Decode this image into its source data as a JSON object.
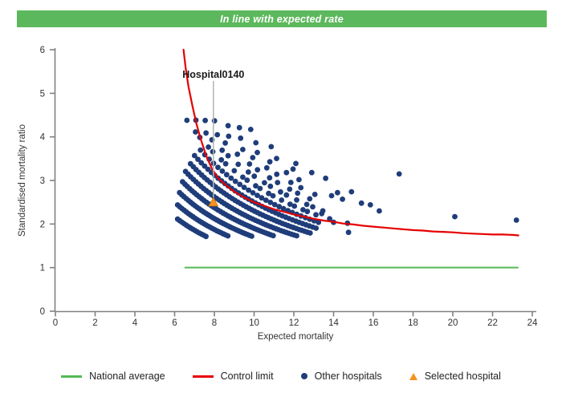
{
  "banner": {
    "text": "In line with expected rate",
    "color": "#5cb85c"
  },
  "legend": {
    "items": [
      {
        "label": "National average",
        "marker": "green-line"
      },
      {
        "label": "Control limit",
        "marker": "red-line"
      },
      {
        "label": "Other hospitals",
        "marker": "navy-dot"
      },
      {
        "label": "Selected hospital",
        "marker": "orange-triangle"
      }
    ]
  },
  "chart_data": {
    "type": "scatter",
    "xlabel": "Expected mortality",
    "ylabel": "Standardised mortality ratio",
    "xlim": [
      0,
      24
    ],
    "ylim": [
      0,
      6
    ],
    "xticks": [
      0,
      2,
      4,
      6,
      8,
      10,
      12,
      14,
      16,
      18,
      20,
      22,
      24
    ],
    "yticks": [
      0,
      1,
      2,
      3,
      4,
      5,
      6
    ],
    "grid": false,
    "national_average": {
      "smr": 1.0,
      "e_start": 6.5,
      "e_end": 23.3,
      "color": "#55b955"
    },
    "control_limit": {
      "color": "#e60000",
      "points": [
        [
          6.45,
          6.0
        ],
        [
          6.55,
          5.6
        ],
        [
          6.7,
          5.15
        ],
        [
          6.9,
          4.7
        ],
        [
          7.1,
          4.3
        ],
        [
          7.3,
          3.97
        ],
        [
          7.6,
          3.55
        ],
        [
          7.9,
          3.25
        ],
        [
          8.2,
          3.05
        ],
        [
          8.6,
          2.88
        ],
        [
          9.0,
          2.74
        ],
        [
          9.5,
          2.61
        ],
        [
          10.0,
          2.5
        ],
        [
          10.5,
          2.42
        ],
        [
          11.0,
          2.34
        ],
        [
          11.5,
          2.28
        ],
        [
          12.0,
          2.22
        ],
        [
          12.5,
          2.17
        ],
        [
          13.0,
          2.12
        ],
        [
          13.5,
          2.08
        ],
        [
          14.0,
          2.05
        ],
        [
          14.5,
          2.01
        ],
        [
          15.0,
          1.99
        ],
        [
          15.5,
          1.96
        ],
        [
          16.0,
          1.94
        ],
        [
          16.5,
          1.92
        ],
        [
          17.0,
          1.9
        ],
        [
          17.5,
          1.88
        ],
        [
          18.0,
          1.86
        ],
        [
          18.5,
          1.85
        ],
        [
          19.0,
          1.83
        ],
        [
          19.5,
          1.82
        ],
        [
          20.0,
          1.81
        ],
        [
          20.5,
          1.79
        ],
        [
          21.0,
          1.78
        ],
        [
          21.5,
          1.77
        ],
        [
          22.0,
          1.76
        ],
        [
          22.5,
          1.76
        ],
        [
          23.0,
          1.75
        ],
        [
          23.3,
          1.74
        ]
      ]
    },
    "other_hospitals": {
      "color": "#1f3d7a",
      "arcs": [
        {
          "deaths": 13,
          "e_start": 6.15,
          "e_end": 7.55,
          "e_step": 0.11
        },
        {
          "deaths": 15,
          "e_start": 6.15,
          "e_end": 8.7,
          "e_step": 0.11
        },
        {
          "deaths": 17,
          "e_start": 6.25,
          "e_end": 9.85,
          "e_step": 0.11
        },
        {
          "deaths": 19,
          "e_start": 6.4,
          "e_end": 11.0,
          "e_step": 0.12
        },
        {
          "deaths": 21,
          "e_start": 6.55,
          "e_end": 12.2,
          "e_step": 0.13
        },
        {
          "deaths": 23,
          "e_start": 6.8,
          "e_end": 12.8,
          "e_step": 0.14
        },
        {
          "deaths": 25,
          "e_start": 7.0,
          "e_end": 13.2,
          "e_step": 0.17
        },
        {
          "deaths": 27,
          "e_start": 7.3,
          "e_end": 13.2,
          "e_step": 0.22
        },
        {
          "deaths": 29,
          "e_start": 6.62,
          "e_end": 13.2,
          "e_step": 0.34
        },
        {
          "deaths": 31,
          "e_start": 7.1,
          "e_end": 13.2,
          "e_step": 0.42
        },
        {
          "deaths": 33,
          "e_start": 7.6,
          "e_end": 13.0,
          "e_step": 0.52
        },
        {
          "deaths": 35,
          "e_start": 8.1,
          "e_end": 12.8,
          "e_step": 0.62
        },
        {
          "deaths": 37,
          "e_start": 8.6,
          "e_end": 12.6,
          "e_step": 0.75
        },
        {
          "deaths": 39,
          "e_start": 9.2,
          "e_end": 12.3,
          "e_step": 0.95
        },
        {
          "deaths": 41,
          "e_start": 9.8,
          "e_end": 12.0,
          "e_step": 1.15
        }
      ],
      "points": [
        [
          13.9,
          2.65
        ],
        [
          14.2,
          2.72
        ],
        [
          14.45,
          2.57
        ],
        [
          14.9,
          2.74
        ],
        [
          15.4,
          2.48
        ],
        [
          15.85,
          2.44
        ],
        [
          16.3,
          2.3
        ],
        [
          17.3,
          3.15
        ],
        [
          14.0,
          2.04
        ],
        [
          14.7,
          2.02
        ],
        [
          14.75,
          1.81
        ],
        [
          20.1,
          2.17
        ],
        [
          23.2,
          2.09
        ],
        [
          13.6,
          3.05
        ],
        [
          12.9,
          3.18
        ],
        [
          13.4,
          2.24
        ],
        [
          13.8,
          2.12
        ]
      ]
    },
    "selected_hospital": {
      "label": "Hospital0140",
      "expected_mortality": 7.95,
      "smr": 2.5,
      "color": "#f6921e"
    }
  }
}
